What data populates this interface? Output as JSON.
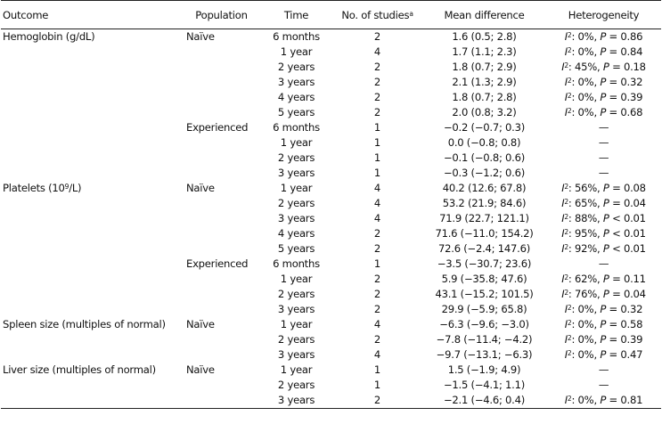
{
  "headers": {
    "outcome": "Outcome",
    "population": "Population",
    "time": "Time",
    "n_studies": "No. of studies",
    "n_studies_note": "a",
    "mean_difference": "Mean difference",
    "heterogeneity": "Heterogeneity"
  },
  "rows": [
    {
      "outcome": "Hemoglobin (g/dL)",
      "population": "Naïve",
      "time": "6 months",
      "n": "2",
      "md": "1.6 (0.5; 2.8)",
      "i2": "0%",
      "p": "P = 0.86"
    },
    {
      "outcome": "",
      "population": "",
      "time": "1 year",
      "n": "4",
      "md": "1.7 (1.1; 2.3)",
      "i2": "0%",
      "p": "P = 0.84"
    },
    {
      "outcome": "",
      "population": "",
      "time": "2 years",
      "n": "2",
      "md": "1.8 (0.7; 2.9)",
      "i2": "45%",
      "p": "P = 0.18"
    },
    {
      "outcome": "",
      "population": "",
      "time": "3 years",
      "n": "2",
      "md": "2.1 (1.3; 2.9)",
      "i2": "0%",
      "p": "P = 0.32"
    },
    {
      "outcome": "",
      "population": "",
      "time": "4 years",
      "n": "2",
      "md": "1.8 (0.7; 2.8)",
      "i2": "0%",
      "p": "P = 0.39"
    },
    {
      "outcome": "",
      "population": "",
      "time": "5 years",
      "n": "2",
      "md": "2.0 (0.8; 3.2)",
      "i2": "0%",
      "p": "P = 0.68"
    },
    {
      "outcome": "",
      "population": "Experienced",
      "time": "6 months",
      "n": "1",
      "md": "−0.2 (−0.7; 0.3)",
      "dash": "—"
    },
    {
      "outcome": "",
      "population": "",
      "time": "1 year",
      "n": "1",
      "md": "0.0 (−0.8; 0.8)",
      "dash": "—"
    },
    {
      "outcome": "",
      "population": "",
      "time": "2 years",
      "n": "1",
      "md": "−0.1 (−0.8; 0.6)",
      "dash": "—"
    },
    {
      "outcome": "",
      "population": "",
      "time": "3 years",
      "n": "1",
      "md": "−0.3 (−1.2; 0.6)",
      "dash": "—"
    },
    {
      "outcome": "Platelets (10",
      "outcome_sup": "9",
      "outcome_after": "/L)",
      "population": "Naïve",
      "time": "1 year",
      "n": "4",
      "md": "40.2 (12.6; 67.8)",
      "i2": "56%",
      "p": "P = 0.08"
    },
    {
      "outcome": "",
      "population": "",
      "time": "2 years",
      "n": "4",
      "md": "53.2 (21.9; 84.6)",
      "i2": "65%",
      "p": "P = 0.04"
    },
    {
      "outcome": "",
      "population": "",
      "time": "3 years",
      "n": "4",
      "md": "71.9 (22.7; 121.1)",
      "i2": "88%",
      "p": "P < 0.01"
    },
    {
      "outcome": "",
      "population": "",
      "time": "4 years",
      "n": "2",
      "md": "71.6 (−11.0; 154.2)",
      "i2": "95%",
      "p": "P < 0.01"
    },
    {
      "outcome": "",
      "population": "",
      "time": "5 years",
      "n": "2",
      "md": "72.6 (−2.4; 147.6)",
      "i2": "92%",
      "p": "P < 0.01"
    },
    {
      "outcome": "",
      "population": "Experienced",
      "time": "6 months",
      "n": "1",
      "md": "−3.5 (−30.7; 23.6)",
      "dash": "—"
    },
    {
      "outcome": "",
      "population": "",
      "time": "1 year",
      "n": "2",
      "md": "5.9 (−35.8; 47.6)",
      "i2": "62%",
      "p": "P = 0.11"
    },
    {
      "outcome": "",
      "population": "",
      "time": "2 years",
      "n": "2",
      "md": "43.1 (−15.2; 101.5)",
      "i2": "76%",
      "p": "P = 0.04"
    },
    {
      "outcome": "",
      "population": "",
      "time": "3 years",
      "n": "2",
      "md": "29.9 (−5.9; 65.8)",
      "i2": "0%",
      "p": "P = 0.32"
    },
    {
      "outcome": "Spleen size (multiples of normal)",
      "population": "Naïve",
      "time": "1 year",
      "n": "4",
      "md": "−6.3 (−9.6; −3.0)",
      "i2": "0%",
      "p": "P = 0.58"
    },
    {
      "outcome": "",
      "population": "",
      "time": "2 years",
      "n": "2",
      "md": "−7.8 (−11.4; −4.2)",
      "i2": "0%",
      "p": "P = 0.39"
    },
    {
      "outcome": "",
      "population": "",
      "time": "3 years",
      "n": "4",
      "md": "−9.7 (−13.1; −6.3)",
      "i2": "0%",
      "p": "P = 0.47"
    },
    {
      "outcome": "Liver size (multiples of normal)",
      "population": "Naïve",
      "time": "1 year",
      "n": "1",
      "md": "1.5 (−1.9; 4.9)",
      "dash": "—"
    },
    {
      "outcome": "",
      "population": "",
      "time": "2 years",
      "n": "1",
      "md": "−1.5 (−4.1; 1.1)",
      "dash": "—"
    },
    {
      "outcome": "",
      "population": "",
      "time": "3 years",
      "n": "2",
      "md": "−2.1 (−4.6; 0.4)",
      "i2": "0%",
      "p": "P = 0.81"
    }
  ]
}
